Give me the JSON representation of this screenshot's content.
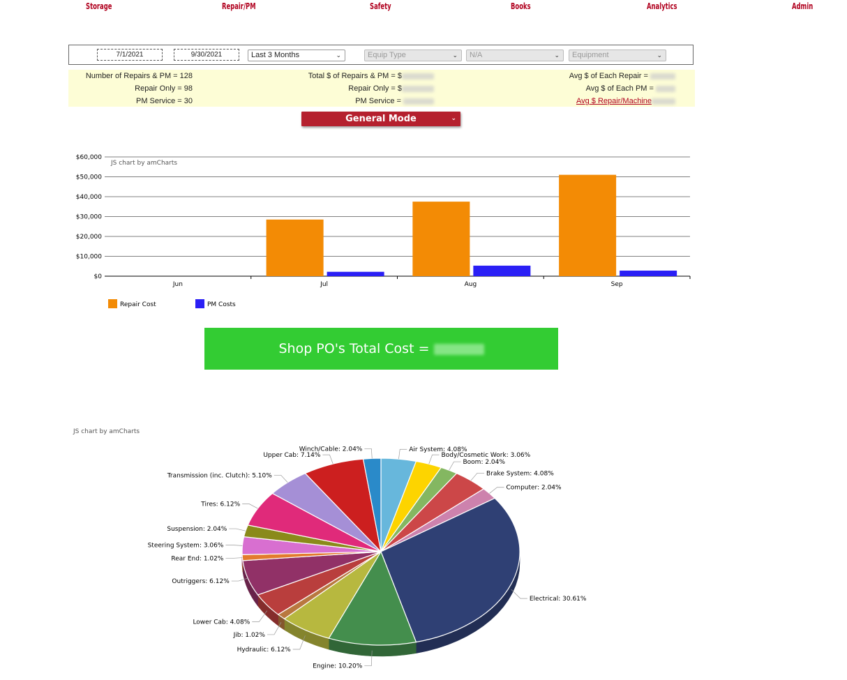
{
  "nav": [
    "Storage",
    "Repair/PM",
    "Safety",
    "Books",
    "Analytics",
    "Admin"
  ],
  "filters": {
    "start_date": "7/1/2021",
    "end_date": "9/30/2021",
    "range": "Last 3 Months",
    "equip_type": "Equip Type",
    "sub": "N/A",
    "equipment": "Equipment"
  },
  "stats": {
    "num_repairs_pm": "Number of Repairs & PM = 128",
    "repair_only": "Repair Only = 98",
    "pm_service": "PM Service = 30",
    "total_repairs_pm": "Total $ of Repairs & PM = $",
    "total_repair_only": "Repair Only = $",
    "total_pm_service": "PM Service = ",
    "avg_each_repair": "Avg $ of Each Repair = ",
    "avg_each_pm": "Avg $ of Each PM = ",
    "avg_repair_machine": "Avg $ Repair/Machine"
  },
  "mode_button": "General Mode",
  "po_total": "Shop PO's Total Cost = ",
  "credits": {
    "bar": "JS chart by amCharts",
    "pie": "JS chart by amCharts"
  },
  "colors": {
    "repair": "#f38b05",
    "pm": "#2a1ff5",
    "nav": "#b0001e",
    "po": "#33cc33",
    "mode": "#b5202e"
  },
  "chart_data": [
    {
      "type": "bar",
      "categories": [
        "Jun",
        "Jul",
        "Aug",
        "Sep"
      ],
      "series": [
        {
          "name": "Repair Cost",
          "values": [
            0,
            28500,
            37500,
            51000
          ]
        },
        {
          "name": "PM Costs",
          "values": [
            0,
            2200,
            5300,
            2800
          ]
        }
      ],
      "yticks": [
        "$0",
        "$10,000",
        "$20,000",
        "$30,000",
        "$40,000",
        "$50,000",
        "$60,000"
      ],
      "ylim": [
        0,
        60000
      ],
      "grid": true,
      "legend": "bottom-left"
    },
    {
      "type": "pie",
      "slices": [
        {
          "label": "Air System: 4.08%",
          "value": 4.08,
          "color": "#67b7dc"
        },
        {
          "label": "Body/Cosmetic Work: 3.06%",
          "value": 3.06,
          "color": "#fdd400"
        },
        {
          "label": "Boom: 2.04%",
          "value": 2.04,
          "color": "#84b761"
        },
        {
          "label": "Brake System: 4.08%",
          "value": 4.08,
          "color": "#cc4748"
        },
        {
          "label": "Computer: 2.04%",
          "value": 2.04,
          "color": "#cd82ad"
        },
        {
          "label": "Electrical: 30.61%",
          "value": 30.61,
          "color": "#2f4074"
        },
        {
          "label": "Engine: 10.20%",
          "value": 10.2,
          "color": "#448e4d"
        },
        {
          "label": "Hydraulic: 6.12%",
          "value": 6.12,
          "color": "#b7b83f"
        },
        {
          "label": "Jib: 1.02%",
          "value": 1.02,
          "color": "#b9783f"
        },
        {
          "label": "Lower Cab: 4.08%",
          "value": 4.08,
          "color": "#b93e3d"
        },
        {
          "label": "Outriggers: 6.12%",
          "value": 6.12,
          "color": "#913167"
        },
        {
          "label": "Rear End: 1.02%",
          "value": 1.02,
          "color": "#e37b2d"
        },
        {
          "label": "Steering System: 3.06%",
          "value": 3.06,
          "color": "#d86fd0"
        },
        {
          "label": "Suspension: 2.04%",
          "value": 2.04,
          "color": "#8a8a1a"
        },
        {
          "label": "Tires: 6.12%",
          "value": 6.12,
          "color": "#e02a7a"
        },
        {
          "label": "Transmission (inc. Clutch): 5.10%",
          "value": 5.1,
          "color": "#a58fd6"
        },
        {
          "label": "Upper Cab: 7.14%",
          "value": 7.14,
          "color": "#cc1f1f"
        },
        {
          "label": "Winch/Cable: 2.04%",
          "value": 2.04,
          "color": "#2a8ac9"
        }
      ]
    }
  ]
}
